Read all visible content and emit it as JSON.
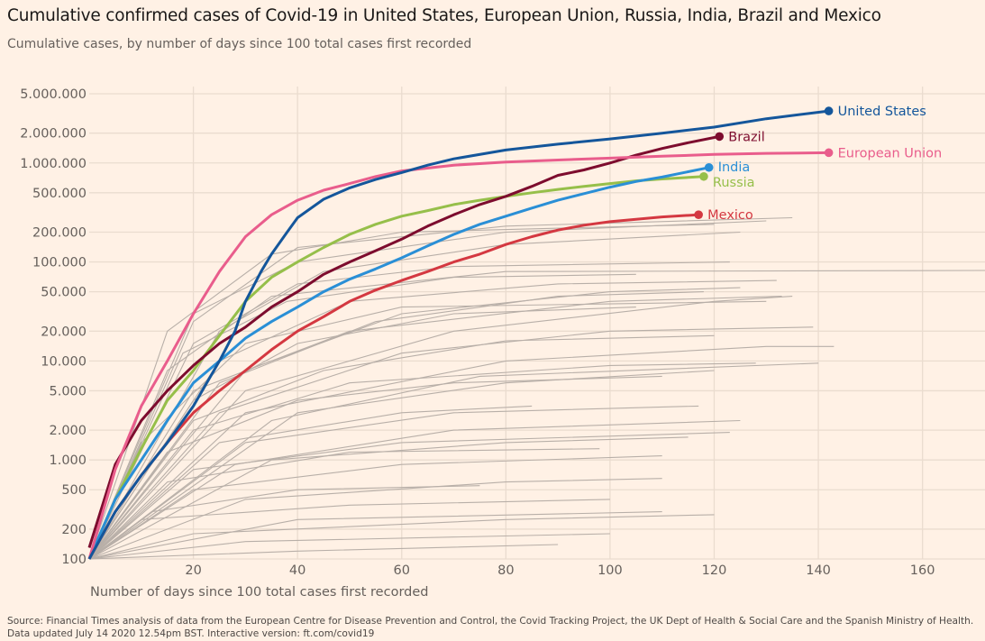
{
  "title": "Cumulative confirmed cases of Covid-19 in United States, European Union, Russia, India, Brazil and Mexico",
  "subtitle": "Cumulative cases, by number of days since 100 total cases first recorded",
  "source_line1": "Source: Financial Times analysis of data from the European Centre for Disease Prevention and Control, the Covid Tracking Project, the UK Dept of Health & Social Care and the Spanish Ministry of Health.",
  "source_line2": "Data updated July 14 2020 12.54pm BST. Interactive version: ft.com/covid19",
  "chart_data": {
    "type": "line",
    "xlabel": "Number of days since 100 total cases first recorded",
    "ylabel": "",
    "yscale": "log",
    "xlim": [
      0,
      172
    ],
    "ylim": [
      100,
      5000000
    ],
    "grid": true,
    "legend": "direct labels at line ends",
    "background": "#fff1e5",
    "x_ticks": [
      20,
      40,
      60,
      80,
      100,
      120,
      140,
      160
    ],
    "x_tick_labels": [
      "20",
      "40",
      "60",
      "80",
      "100",
      "120",
      "140",
      "160"
    ],
    "y_ticks": [
      100,
      200,
      500,
      1000,
      2000,
      5000,
      10000,
      20000,
      50000,
      100000,
      200000,
      500000,
      1000000,
      2000000,
      5000000
    ],
    "y_tick_labels": [
      "100",
      "200",
      "500",
      "1.000",
      "2.000",
      "5.000",
      "10.000",
      "20.000",
      "50.000",
      "100.000",
      "200.000",
      "500.000",
      "1.000.000",
      "2.000.000",
      "5.000.000"
    ],
    "background_series_color": "#b8afa8",
    "background_series": [
      [
        [
          0,
          100
        ],
        [
          20,
          30000
        ],
        [
          40,
          100000
        ],
        [
          80,
          200000
        ],
        [
          130,
          260000
        ]
      ],
      [
        [
          0,
          100
        ],
        [
          15,
          20000
        ],
        [
          35,
          120000
        ],
        [
          60,
          200000
        ],
        [
          120,
          240000
        ]
      ],
      [
        [
          0,
          100
        ],
        [
          20,
          25000
        ],
        [
          40,
          140000
        ],
        [
          80,
          230000
        ],
        [
          135,
          280000
        ]
      ],
      [
        [
          0,
          100
        ],
        [
          25,
          20000
        ],
        [
          45,
          80000
        ],
        [
          80,
          150000
        ],
        [
          125,
          200000
        ]
      ],
      [
        [
          0,
          100
        ],
        [
          20,
          15000
        ],
        [
          40,
          60000
        ],
        [
          70,
          90000
        ],
        [
          123,
          100000
        ]
      ],
      [
        [
          0,
          100
        ],
        [
          15,
          8000
        ],
        [
          35,
          45000
        ],
        [
          80,
          80000
        ],
        [
          172,
          82000
        ]
      ],
      [
        [
          0,
          100
        ],
        [
          25,
          10000
        ],
        [
          50,
          40000
        ],
        [
          90,
          60000
        ],
        [
          132,
          65000
        ]
      ],
      [
        [
          0,
          100
        ],
        [
          30,
          8000
        ],
        [
          60,
          30000
        ],
        [
          100,
          50000
        ],
        [
          125,
          55000
        ]
      ],
      [
        [
          0,
          100
        ],
        [
          20,
          5000
        ],
        [
          50,
          20000
        ],
        [
          100,
          40000
        ],
        [
          133,
          45000
        ]
      ],
      [
        [
          0,
          100
        ],
        [
          30,
          5000
        ],
        [
          70,
          20000
        ],
        [
          120,
          40000
        ],
        [
          135,
          45000
        ]
      ],
      [
        [
          0,
          100
        ],
        [
          25,
          3000
        ],
        [
          60,
          12000
        ],
        [
          100,
          20000
        ],
        [
          139,
          22000
        ]
      ],
      [
        [
          0,
          100
        ],
        [
          30,
          3000
        ],
        [
          80,
          10000
        ],
        [
          130,
          14000
        ],
        [
          143,
          14000
        ]
      ],
      [
        [
          0,
          100
        ],
        [
          20,
          2000
        ],
        [
          50,
          6000
        ],
        [
          100,
          9000
        ],
        [
          128,
          9500
        ]
      ],
      [
        [
          0,
          100
        ],
        [
          40,
          3000
        ],
        [
          80,
          6000
        ],
        [
          120,
          8000
        ]
      ],
      [
        [
          0,
          100
        ],
        [
          30,
          1500
        ],
        [
          70,
          3000
        ],
        [
          117,
          3500
        ]
      ],
      [
        [
          0,
          100
        ],
        [
          20,
          800
        ],
        [
          60,
          1500
        ],
        [
          123,
          1900
        ]
      ],
      [
        [
          0,
          100
        ],
        [
          35,
          1000
        ],
        [
          80,
          1500
        ],
        [
          115,
          1700
        ]
      ],
      [
        [
          0,
          100
        ],
        [
          20,
          500
        ],
        [
          60,
          900
        ],
        [
          110,
          1100
        ]
      ],
      [
        [
          0,
          100
        ],
        [
          30,
          400
        ],
        [
          80,
          600
        ],
        [
          110,
          650
        ]
      ],
      [
        [
          0,
          100
        ],
        [
          10,
          250
        ],
        [
          50,
          350
        ],
        [
          100,
          400
        ]
      ],
      [
        [
          0,
          100
        ],
        [
          20,
          180
        ],
        [
          80,
          250
        ],
        [
          120,
          280
        ]
      ],
      [
        [
          0,
          100
        ],
        [
          30,
          150
        ],
        [
          100,
          180
        ]
      ],
      [
        [
          0,
          100
        ],
        [
          40,
          120
        ],
        [
          90,
          140
        ]
      ],
      [
        [
          0,
          100
        ],
        [
          15,
          1200
        ],
        [
          40,
          4000
        ],
        [
          70,
          6000
        ],
        [
          110,
          7000
        ]
      ],
      [
        [
          0,
          100
        ],
        [
          25,
          6000
        ],
        [
          55,
          25000
        ],
        [
          90,
          45000
        ],
        [
          118,
          50000
        ]
      ],
      [
        [
          0,
          100
        ],
        [
          20,
          4000
        ],
        [
          40,
          15000
        ],
        [
          70,
          30000
        ],
        [
          105,
          35000
        ]
      ],
      [
        [
          0,
          100
        ],
        [
          10,
          1500
        ],
        [
          30,
          15000
        ],
        [
          60,
          35000
        ],
        [
          130,
          40000
        ]
      ],
      [
        [
          0,
          100
        ],
        [
          25,
          1500
        ],
        [
          60,
          3000
        ],
        [
          85,
          3500
        ]
      ],
      [
        [
          0,
          100
        ],
        [
          15,
          600
        ],
        [
          50,
          1200
        ],
        [
          98,
          1300
        ]
      ],
      [
        [
          0,
          100
        ],
        [
          35,
          2500
        ],
        [
          75,
          7000
        ],
        [
          140,
          9500
        ]
      ],
      [
        [
          0,
          100
        ],
        [
          18,
          12000
        ],
        [
          38,
          40000
        ],
        [
          70,
          70000
        ],
        [
          105,
          75000
        ]
      ],
      [
        [
          0,
          100
        ],
        [
          28,
          900
        ],
        [
          70,
          2000
        ],
        [
          125,
          2500
        ]
      ],
      [
        [
          0,
          100
        ],
        [
          12,
          300
        ],
        [
          40,
          500
        ],
        [
          75,
          550
        ]
      ],
      [
        [
          0,
          100
        ],
        [
          40,
          250
        ],
        [
          110,
          300
        ]
      ],
      [
        [
          0,
          100
        ],
        [
          20,
          2500
        ],
        [
          45,
          8000
        ],
        [
          80,
          16000
        ],
        [
          120,
          18000
        ]
      ]
    ],
    "series": [
      {
        "name": "Mexico",
        "color": "#d43841",
        "points": [
          [
            0,
            100
          ],
          [
            5,
            300
          ],
          [
            10,
            700
          ],
          [
            15,
            1500
          ],
          [
            20,
            3000
          ],
          [
            25,
            5000
          ],
          [
            30,
            8000
          ],
          [
            35,
            13000
          ],
          [
            40,
            20000
          ],
          [
            45,
            28000
          ],
          [
            50,
            40000
          ],
          [
            55,
            52000
          ],
          [
            60,
            65000
          ],
          [
            65,
            80000
          ],
          [
            70,
            100000
          ],
          [
            75,
            120000
          ],
          [
            80,
            150000
          ],
          [
            85,
            180000
          ],
          [
            90,
            210000
          ],
          [
            95,
            235000
          ],
          [
            100,
            255000
          ],
          [
            105,
            270000
          ],
          [
            110,
            285000
          ],
          [
            117,
            300000
          ]
        ]
      },
      {
        "name": "Russia",
        "color": "#96bf4a",
        "points": [
          [
            0,
            100
          ],
          [
            5,
            400
          ],
          [
            10,
            1300
          ],
          [
            15,
            4000
          ],
          [
            20,
            8000
          ],
          [
            25,
            18000
          ],
          [
            30,
            40000
          ],
          [
            35,
            70000
          ],
          [
            40,
            100000
          ],
          [
            45,
            140000
          ],
          [
            50,
            190000
          ],
          [
            55,
            240000
          ],
          [
            60,
            290000
          ],
          [
            65,
            330000
          ],
          [
            70,
            380000
          ],
          [
            75,
            420000
          ],
          [
            80,
            460000
          ],
          [
            85,
            500000
          ],
          [
            90,
            540000
          ],
          [
            95,
            580000
          ],
          [
            100,
            620000
          ],
          [
            105,
            660000
          ],
          [
            110,
            690000
          ],
          [
            118,
            730000
          ]
        ]
      },
      {
        "name": "India",
        "color": "#2a8fd6",
        "points": [
          [
            0,
            100
          ],
          [
            5,
            400
          ],
          [
            10,
            1000
          ],
          [
            15,
            2500
          ],
          [
            20,
            6000
          ],
          [
            25,
            10000
          ],
          [
            30,
            17000
          ],
          [
            35,
            25000
          ],
          [
            40,
            35000
          ],
          [
            45,
            50000
          ],
          [
            50,
            67000
          ],
          [
            55,
            85000
          ],
          [
            60,
            110000
          ],
          [
            65,
            145000
          ],
          [
            70,
            190000
          ],
          [
            75,
            240000
          ],
          [
            80,
            290000
          ],
          [
            85,
            350000
          ],
          [
            90,
            420000
          ],
          [
            95,
            490000
          ],
          [
            100,
            570000
          ],
          [
            105,
            650000
          ],
          [
            110,
            720000
          ],
          [
            119,
            900000
          ]
        ]
      },
      {
        "name": "Brazil",
        "color": "#7d0c2e",
        "points": [
          [
            0,
            130
          ],
          [
            5,
            900
          ],
          [
            10,
            2500
          ],
          [
            15,
            5000
          ],
          [
            20,
            9000
          ],
          [
            25,
            15000
          ],
          [
            30,
            22000
          ],
          [
            35,
            35000
          ],
          [
            40,
            50000
          ],
          [
            45,
            75000
          ],
          [
            50,
            100000
          ],
          [
            55,
            130000
          ],
          [
            60,
            170000
          ],
          [
            65,
            230000
          ],
          [
            70,
            300000
          ],
          [
            75,
            380000
          ],
          [
            80,
            460000
          ],
          [
            85,
            580000
          ],
          [
            90,
            750000
          ],
          [
            95,
            850000
          ],
          [
            100,
            1000000
          ],
          [
            105,
            1200000
          ],
          [
            110,
            1400000
          ],
          [
            115,
            1600000
          ],
          [
            121,
            1850000
          ]
        ]
      },
      {
        "name": "European Union",
        "color": "#e95d8c",
        "points": [
          [
            0,
            100
          ],
          [
            5,
            800
          ],
          [
            10,
            3500
          ],
          [
            15,
            10000
          ],
          [
            20,
            30000
          ],
          [
            25,
            80000
          ],
          [
            30,
            180000
          ],
          [
            35,
            300000
          ],
          [
            40,
            420000
          ],
          [
            45,
            530000
          ],
          [
            50,
            620000
          ],
          [
            55,
            730000
          ],
          [
            60,
            830000
          ],
          [
            70,
            950000
          ],
          [
            80,
            1020000
          ],
          [
            90,
            1070000
          ],
          [
            100,
            1120000
          ],
          [
            110,
            1170000
          ],
          [
            120,
            1220000
          ],
          [
            130,
            1250000
          ],
          [
            142,
            1270000
          ]
        ]
      },
      {
        "name": "United States",
        "color": "#14569b",
        "points": [
          [
            0,
            100
          ],
          [
            5,
            300
          ],
          [
            10,
            700
          ],
          [
            15,
            1500
          ],
          [
            20,
            3500
          ],
          [
            25,
            10000
          ],
          [
            28,
            20000
          ],
          [
            30,
            40000
          ],
          [
            33,
            80000
          ],
          [
            35,
            120000
          ],
          [
            38,
            200000
          ],
          [
            40,
            280000
          ],
          [
            45,
            430000
          ],
          [
            50,
            560000
          ],
          [
            55,
            680000
          ],
          [
            60,
            800000
          ],
          [
            65,
            950000
          ],
          [
            70,
            1100000
          ],
          [
            80,
            1350000
          ],
          [
            90,
            1550000
          ],
          [
            100,
            1750000
          ],
          [
            110,
            2000000
          ],
          [
            120,
            2300000
          ],
          [
            130,
            2800000
          ],
          [
            142,
            3350000
          ]
        ]
      }
    ]
  }
}
